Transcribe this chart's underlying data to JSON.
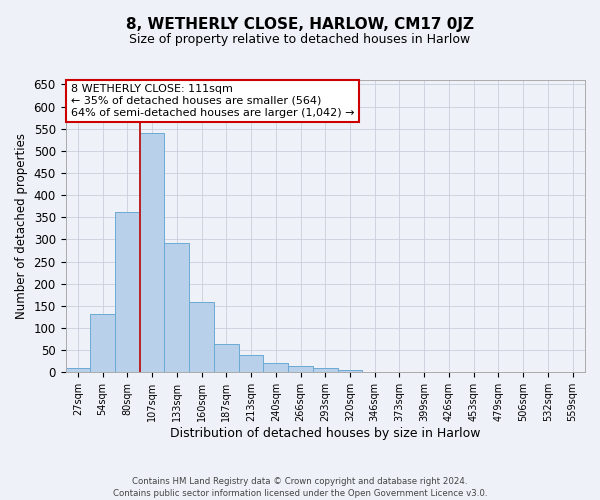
{
  "title": "8, WETHERLY CLOSE, HARLOW, CM17 0JZ",
  "subtitle": "Size of property relative to detached houses in Harlow",
  "xlabel": "Distribution of detached houses by size in Harlow",
  "ylabel": "Number of detached properties",
  "bin_labels": [
    "27sqm",
    "54sqm",
    "80sqm",
    "107sqm",
    "133sqm",
    "160sqm",
    "187sqm",
    "213sqm",
    "240sqm",
    "266sqm",
    "293sqm",
    "320sqm",
    "346sqm",
    "373sqm",
    "399sqm",
    "426sqm",
    "453sqm",
    "479sqm",
    "506sqm",
    "532sqm",
    "559sqm"
  ],
  "bar_values": [
    10,
    132,
    363,
    540,
    292,
    158,
    65,
    40,
    22,
    15,
    10,
    6,
    1,
    0,
    0,
    0,
    1,
    0,
    0,
    1,
    0
  ],
  "bar_color": "#b8d0ea",
  "bar_edgecolor": "#6aaad4",
  "grid_color": "#c8d0dc",
  "bg_color": "#eef2f8",
  "annotation_line1": "8 WETHERLY CLOSE: 111sqm",
  "annotation_line2": "← 35% of detached houses are smaller (564)",
  "annotation_line3": "64% of semi-detached houses are larger (1,042) →",
  "annotation_box_edgecolor": "#cc0000",
  "red_line_bin": 3,
  "ylim": [
    0,
    660
  ],
  "yticks": [
    0,
    50,
    100,
    150,
    200,
    250,
    300,
    350,
    400,
    450,
    500,
    550,
    600,
    650
  ],
  "footer1": "Contains HM Land Registry data © Crown copyright and database right 2024.",
  "footer2": "Contains public sector information licensed under the Open Government Licence v3.0."
}
